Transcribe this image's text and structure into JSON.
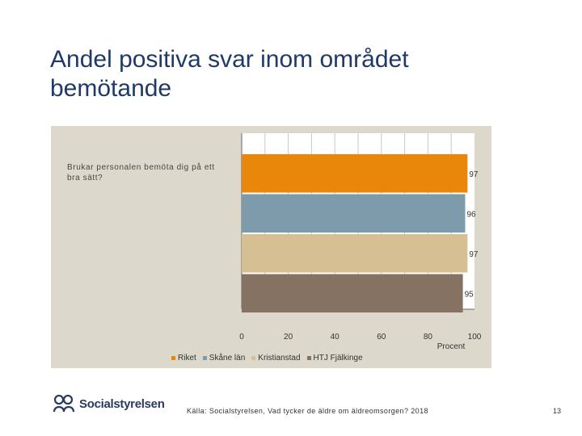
{
  "slide": {
    "title": "Andel positiva svar inom området bemötande",
    "source": "Källa: Socialstyrelsen, Vad tycker de äldre om äldreomsorgen? 2018",
    "page_number": "13",
    "logo_text": "Socialstyrelsen"
  },
  "chart_data": {
    "type": "bar",
    "orientation": "horizontal",
    "categories": [
      "Brukar personalen bemöta dig på ett bra sätt?"
    ],
    "series": [
      {
        "name": "Riket",
        "values": [
          97
        ],
        "color": "#e8870a"
      },
      {
        "name": "Skåne län",
        "values": [
          96
        ],
        "color": "#7e9bab"
      },
      {
        "name": "Kristianstad",
        "values": [
          97
        ],
        "color": "#d6bf93"
      },
      {
        "name": "HTJ Fjälkinge",
        "values": [
          95
        ],
        "color": "#857263"
      }
    ],
    "data_labels": [
      "97",
      "96",
      "97",
      "95"
    ],
    "xlim": [
      0,
      100
    ],
    "xticks": [
      "0",
      "20",
      "40",
      "60",
      "80",
      "100"
    ],
    "xlabel": "Procent",
    "grid": true,
    "legend_position": "bottom"
  }
}
